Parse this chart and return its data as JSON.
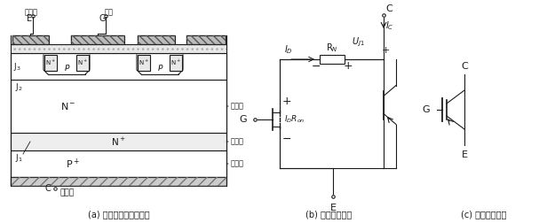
{
  "background_color": "#ffffff",
  "line_color": "#1a1a1a",
  "panel_a_label": "(a) 内部结构断面示意图",
  "panel_b_label": "(b) 简化等效电路",
  "panel_c_label": "(c) 电气图形符号",
  "figsize": [
    6.16,
    2.52
  ],
  "dpi": 100,
  "label_fanji": "发射极",
  "label_shaji": "栅极",
  "label_E": "E",
  "label_G": "G",
  "label_C": "C",
  "label_jidianji": "集电极",
  "label_piaoyiqu": "漂移区",
  "label_huanchongqu": "缓冲区",
  "label_zhurugu": "注入区",
  "label_J1": "J",
  "label_J2": "J",
  "label_J3": "J",
  "label_Nminus": "N⁻",
  "label_Nplus_buf": "N⁺",
  "label_Pplus": "P⁺",
  "label_IC": "I",
  "label_ID": "I",
  "label_RN": "R",
  "label_UJ1": "U",
  "label_IDRon": "I"
}
